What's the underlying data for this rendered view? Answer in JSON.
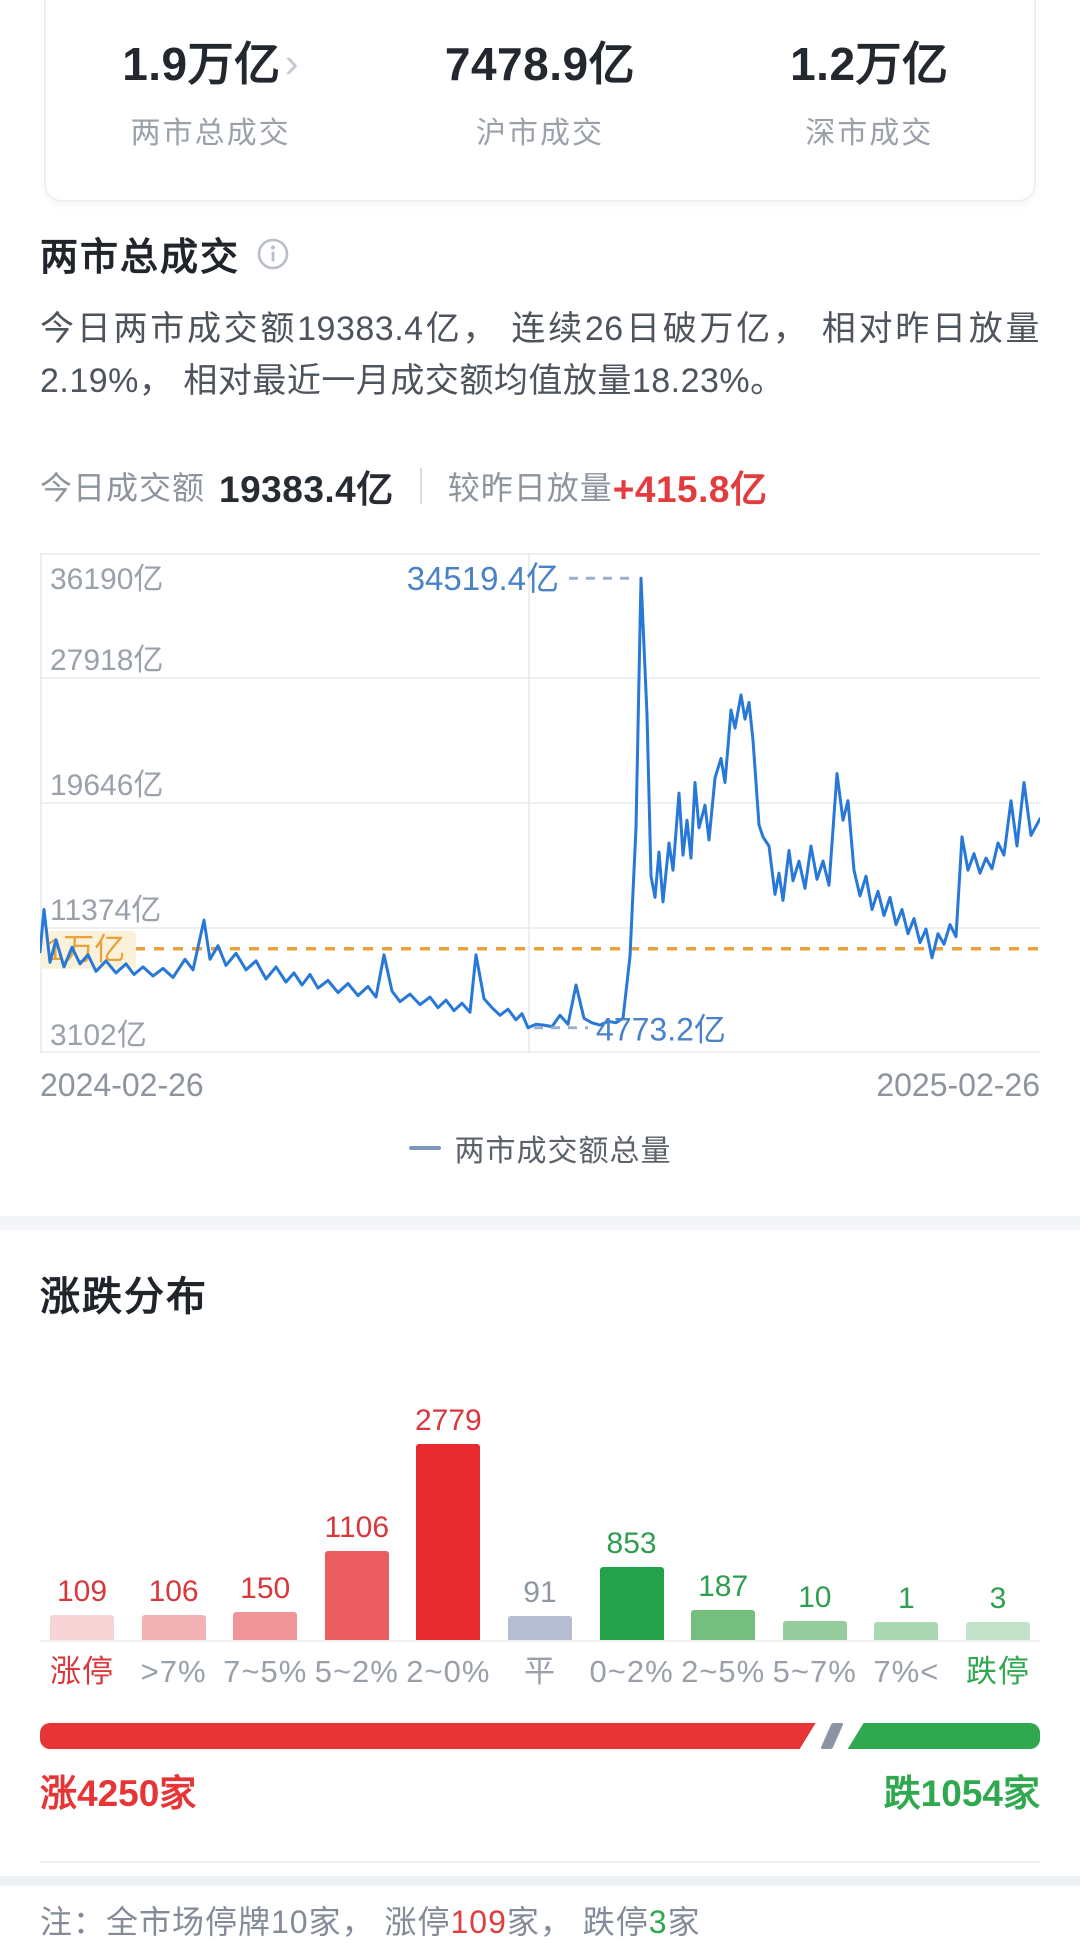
{
  "colors": {
    "line_blue": "#2878d8",
    "annotation_blue": "#4a82c8",
    "threshold_orange": "#e9a23b",
    "threshold_bg": "#faf1da",
    "grid": "#e9eaec",
    "up_red": "#e63437",
    "down_green": "#2fa84f",
    "value_red": "#d9373b",
    "neutral_gray": "#8f97a3",
    "value_green": "#2f9e4f",
    "slash_gray": "#8b94a5"
  },
  "summary": {
    "stats": [
      {
        "value": "1.9万亿",
        "label": "两市总成交",
        "has_chevron": true
      },
      {
        "value": "7478.9亿",
        "label": "沪市成交",
        "has_chevron": false
      },
      {
        "value": "1.2万亿",
        "label": "深市成交",
        "has_chevron": false
      }
    ],
    "chevron_glyph": "›"
  },
  "turnover": {
    "title": "两市总成交",
    "description": "今日两市成交额19383.4亿， 连续26日破万亿， 相对昨日放量2.19%， 相对最近一月成交额均值放量18.23%。",
    "today_label": "今日成交额",
    "today_value": "19383.4亿",
    "vs_label": "较昨日放量",
    "vs_value": "+415.8亿"
  },
  "chart_data": [
    {
      "type": "line",
      "legend": "两市成交额总量",
      "x_range": [
        "2024-02-26",
        "2025-02-26"
      ],
      "ylim": [
        3102,
        36190
      ],
      "unit": "亿",
      "grid_values": [
        36190,
        27918,
        19646,
        11374,
        3102
      ],
      "grid_labels": [
        "36190亿",
        "27918亿",
        "19646亿",
        "11374亿",
        "3102亿"
      ],
      "vertical_grid_fraction": 0.489,
      "threshold": {
        "value": 10000,
        "label": "1万亿"
      },
      "annotations": {
        "peak": {
          "fraction": 0.601,
          "value": 34519.4,
          "label": "34519.4亿"
        },
        "low": {
          "fraction": 0.488,
          "value": 4773.2,
          "label": "4773.2亿"
        }
      },
      "points": [
        [
          0.0,
          9800
        ],
        [
          0.004,
          12600
        ],
        [
          0.01,
          9100
        ],
        [
          0.016,
          10600
        ],
        [
          0.024,
          8800
        ],
        [
          0.032,
          10100
        ],
        [
          0.04,
          9000
        ],
        [
          0.048,
          9600
        ],
        [
          0.056,
          8500
        ],
        [
          0.066,
          9200
        ],
        [
          0.076,
          8400
        ],
        [
          0.086,
          9000
        ],
        [
          0.094,
          8300
        ],
        [
          0.103,
          8800
        ],
        [
          0.113,
          8200
        ],
        [
          0.123,
          8700
        ],
        [
          0.133,
          8100
        ],
        [
          0.145,
          9300
        ],
        [
          0.153,
          8600
        ],
        [
          0.164,
          11900
        ],
        [
          0.17,
          9300
        ],
        [
          0.178,
          10200
        ],
        [
          0.186,
          8900
        ],
        [
          0.196,
          9700
        ],
        [
          0.206,
          8600
        ],
        [
          0.216,
          9200
        ],
        [
          0.226,
          8000
        ],
        [
          0.236,
          8800
        ],
        [
          0.246,
          7800
        ],
        [
          0.254,
          8400
        ],
        [
          0.262,
          7600
        ],
        [
          0.27,
          8300
        ],
        [
          0.278,
          7400
        ],
        [
          0.288,
          7900
        ],
        [
          0.298,
          7100
        ],
        [
          0.308,
          7700
        ],
        [
          0.318,
          6900
        ],
        [
          0.328,
          7500
        ],
        [
          0.336,
          6800
        ],
        [
          0.344,
          9600
        ],
        [
          0.352,
          7200
        ],
        [
          0.36,
          6500
        ],
        [
          0.37,
          7000
        ],
        [
          0.38,
          6300
        ],
        [
          0.39,
          6800
        ],
        [
          0.398,
          6100
        ],
        [
          0.406,
          6600
        ],
        [
          0.414,
          5900
        ],
        [
          0.422,
          6400
        ],
        [
          0.43,
          5800
        ],
        [
          0.436,
          9600
        ],
        [
          0.444,
          6700
        ],
        [
          0.452,
          6100
        ],
        [
          0.46,
          5600
        ],
        [
          0.468,
          6000
        ],
        [
          0.476,
          5300
        ],
        [
          0.482,
          5700
        ],
        [
          0.488,
          4773.2
        ],
        [
          0.496,
          5000
        ],
        [
          0.504,
          4950
        ],
        [
          0.512,
          4850
        ],
        [
          0.52,
          5600
        ],
        [
          0.528,
          5000
        ],
        [
          0.536,
          7600
        ],
        [
          0.544,
          5400
        ],
        [
          0.552,
          5100
        ],
        [
          0.56,
          4950
        ],
        [
          0.568,
          5200
        ],
        [
          0.576,
          5100
        ],
        [
          0.583,
          5400
        ],
        [
          0.59,
          9500
        ],
        [
          0.596,
          18000
        ],
        [
          0.601,
          34519.4
        ],
        [
          0.607,
          25500
        ],
        [
          0.611,
          14800
        ],
        [
          0.615,
          13400
        ],
        [
          0.619,
          16400
        ],
        [
          0.623,
          13100
        ],
        [
          0.629,
          17000
        ],
        [
          0.633,
          15200
        ],
        [
          0.639,
          20300
        ],
        [
          0.643,
          16200
        ],
        [
          0.647,
          18500
        ],
        [
          0.651,
          16000
        ],
        [
          0.655,
          21000
        ],
        [
          0.659,
          18000
        ],
        [
          0.665,
          19500
        ],
        [
          0.669,
          17200
        ],
        [
          0.675,
          21300
        ],
        [
          0.681,
          22600
        ],
        [
          0.685,
          21000
        ],
        [
          0.691,
          25800
        ],
        [
          0.695,
          24600
        ],
        [
          0.701,
          26800
        ],
        [
          0.705,
          25200
        ],
        [
          0.709,
          26300
        ],
        [
          0.713,
          23800
        ],
        [
          0.719,
          18200
        ],
        [
          0.723,
          17400
        ],
        [
          0.729,
          16800
        ],
        [
          0.735,
          13600
        ],
        [
          0.739,
          15000
        ],
        [
          0.743,
          13200
        ],
        [
          0.749,
          16500
        ],
        [
          0.753,
          14500
        ],
        [
          0.759,
          15800
        ],
        [
          0.765,
          14000
        ],
        [
          0.771,
          16800
        ],
        [
          0.777,
          14600
        ],
        [
          0.783,
          15800
        ],
        [
          0.789,
          14200
        ],
        [
          0.797,
          21600
        ],
        [
          0.803,
          18500
        ],
        [
          0.808,
          19800
        ],
        [
          0.814,
          15200
        ],
        [
          0.82,
          13500
        ],
        [
          0.826,
          14800
        ],
        [
          0.832,
          12600
        ],
        [
          0.838,
          13800
        ],
        [
          0.844,
          12200
        ],
        [
          0.85,
          13400
        ],
        [
          0.856,
          11600
        ],
        [
          0.862,
          12600
        ],
        [
          0.868,
          11000
        ],
        [
          0.874,
          12000
        ],
        [
          0.88,
          10400
        ],
        [
          0.886,
          11300
        ],
        [
          0.892,
          9400
        ],
        [
          0.898,
          11000
        ],
        [
          0.904,
          10300
        ],
        [
          0.91,
          11600
        ],
        [
          0.916,
          10800
        ],
        [
          0.922,
          17400
        ],
        [
          0.928,
          15200
        ],
        [
          0.934,
          16300
        ],
        [
          0.94,
          15000
        ],
        [
          0.946,
          16000
        ],
        [
          0.952,
          15300
        ],
        [
          0.958,
          17000
        ],
        [
          0.964,
          16200
        ],
        [
          0.971,
          19800
        ],
        [
          0.977,
          16800
        ],
        [
          0.984,
          21000
        ],
        [
          0.991,
          17500
        ],
        [
          1.0,
          18600
        ]
      ]
    },
    {
      "type": "bar",
      "title": "涨跌分布",
      "categories": [
        "涨停",
        ">7%",
        "7~5%",
        "5~2%",
        "2~0%",
        "平",
        "0~2%",
        "2~5%",
        "5~7%",
        "7%<",
        "跌停"
      ],
      "values": [
        109,
        106,
        150,
        1106,
        2779,
        91,
        853,
        187,
        10,
        1,
        3
      ],
      "bar_colors": [
        "#f7d3d5",
        "#f3b2b5",
        "#ef9598",
        "#ea5c5f",
        "#e52b2e",
        "#b7bdd1",
        "#23a14b",
        "#74bf7e",
        "#96cd9e",
        "#abd8b3",
        "#c3e2c9"
      ],
      "value_colors": [
        "#d9373b",
        "#d9373b",
        "#d9373b",
        "#d9373b",
        "#d9373b",
        "#8f97a3",
        "#2f9e4f",
        "#2f9e4f",
        "#2f9e4f",
        "#2f9e4f",
        "#2f9e4f"
      ],
      "label_colors": [
        "#d9373b",
        "#99a0aa",
        "#99a0aa",
        "#99a0aa",
        "#99a0aa",
        "#99a0aa",
        "#99a0aa",
        "#99a0aa",
        "#99a0aa",
        "#99a0aa",
        "#2fa84f"
      ]
    }
  ],
  "distribution": {
    "title": "涨跌分布",
    "up_count": 4250,
    "down_count": 1054,
    "up_text": "涨4250家",
    "down_text": "跌1054家"
  },
  "note": {
    "parts": [
      "注：全市场停牌10家， 涨停",
      "109",
      "家， 跌停",
      "3",
      "家"
    ]
  }
}
